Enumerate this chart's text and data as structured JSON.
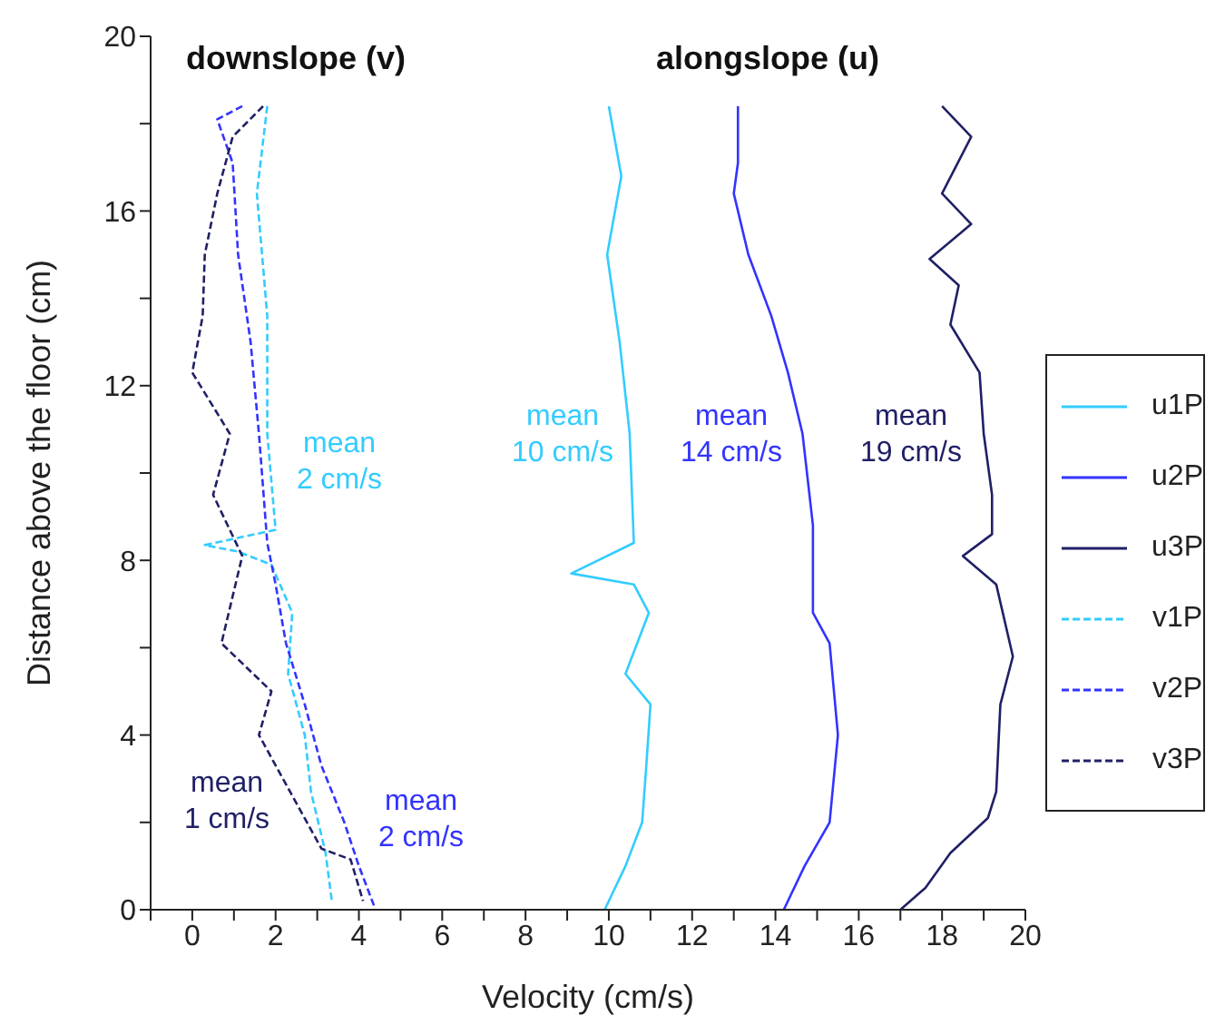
{
  "chart_data": {
    "type": "line",
    "xlabel": "Velocity (cm/s)",
    "ylabel": "Distance above the floor (cm)",
    "xlim": [
      -1,
      20
    ],
    "ylim": [
      0,
      20
    ],
    "xticks": [
      {
        "value": -1,
        "label": null
      },
      0,
      {
        "value": 1,
        "label": null
      },
      2,
      {
        "value": 3,
        "label": null
      },
      4,
      {
        "value": 5,
        "label": null
      },
      6,
      {
        "value": 7,
        "label": null
      },
      8,
      {
        "value": 9,
        "label": null
      },
      10,
      {
        "value": 11,
        "label": null
      },
      12,
      {
        "value": 13,
        "label": null
      },
      14,
      {
        "value": 15,
        "label": null
      },
      16,
      {
        "value": 17,
        "label": null
      },
      18,
      {
        "value": 19,
        "label": null
      },
      20
    ],
    "yticks": [
      0,
      {
        "value": 2,
        "label": null
      },
      4,
      {
        "value": 6,
        "label": null
      },
      8,
      {
        "value": 10,
        "label": null
      },
      12,
      {
        "value": 14,
        "label": null
      },
      16,
      {
        "value": 18,
        "label": null
      },
      20
    ],
    "legend": "right",
    "marker": "none",
    "series": [
      {
        "name": "u1P",
        "color": "#33ccff",
        "line_style": "solid",
        "x": [
          10.0,
          10.3,
          9.96,
          10.26,
          10.5,
          10.6,
          9.1,
          10.6,
          10.96,
          10.4,
          11.0,
          10.9,
          10.8,
          10.4,
          9.9
        ],
        "values": [
          18.4,
          16.8,
          15.0,
          13.0,
          10.9,
          8.4,
          7.7,
          7.45,
          6.8,
          5.4,
          4.7,
          3.3,
          2.0,
          1.0,
          0
        ]
      },
      {
        "name": "u2P",
        "color": "#3333ff",
        "line_style": "solid",
        "x": [
          13.1,
          13.1,
          13.0,
          13.35,
          13.9,
          14.3,
          14.65,
          14.9,
          14.9,
          15.3,
          15.5,
          15.3,
          14.7,
          14.2
        ],
        "values": [
          18.4,
          17.1,
          16.4,
          15.0,
          13.6,
          12.3,
          10.9,
          8.8,
          6.8,
          6.1,
          4.0,
          2.0,
          1.0,
          0
        ]
      },
      {
        "name": "u3P",
        "color": "#202066",
        "line_style": "solid",
        "x": [
          18.0,
          18.7,
          18.0,
          18.7,
          17.7,
          18.4,
          18.2,
          18.9,
          19.0,
          19.2,
          19.2,
          18.5,
          19.3,
          19.7,
          19.4,
          19.3,
          19.1,
          18.2,
          17.6,
          17.0
        ],
        "values": [
          18.4,
          17.7,
          16.4,
          15.7,
          14.9,
          14.3,
          13.4,
          12.3,
          10.9,
          9.5,
          8.6,
          8.1,
          7.45,
          5.8,
          4.7,
          2.7,
          2.1,
          1.3,
          0.5,
          0
        ]
      },
      {
        "name": "v1P",
        "color": "#33ccff",
        "line_style": "dashed",
        "x": [
          1.8,
          1.55,
          1.8,
          1.8,
          2.0,
          0.3,
          1.1,
          1.9,
          2.4,
          2.3,
          2.7,
          2.85,
          3.2,
          3.35
        ],
        "values": [
          18.4,
          16.4,
          13.6,
          10.9,
          8.7,
          8.35,
          8.2,
          7.9,
          6.8,
          5.4,
          4.0,
          2.7,
          1.3,
          0.2
        ]
      },
      {
        "name": "v2P",
        "color": "#3333ff",
        "line_style": "dashed",
        "x": [
          1.2,
          0.6,
          0.97,
          1.1,
          1.4,
          1.6,
          1.8,
          2.0,
          2.25,
          2.7,
          3.1,
          3.65,
          4.0,
          4.4
        ],
        "values": [
          18.4,
          18.1,
          17.1,
          15.0,
          13.0,
          10.9,
          8.4,
          7.45,
          6.1,
          4.7,
          3.3,
          2.0,
          1.0,
          0
        ]
      },
      {
        "name": "v3P",
        "color": "#202066",
        "line_style": "dashed",
        "x": [
          1.7,
          0.97,
          0.6,
          0.3,
          0.25,
          0.0,
          0.9,
          0.5,
          1.2,
          0.7,
          1.9,
          1.6,
          2.35,
          3.1,
          3.8,
          4.1
        ],
        "values": [
          18.4,
          17.7,
          16.4,
          15.0,
          13.6,
          12.3,
          10.9,
          9.5,
          8.1,
          6.1,
          5.0,
          4.0,
          2.7,
          1.4,
          1.15,
          0.2
        ]
      }
    ],
    "annotations": [
      "downslope (v)",
      "alongslope (u)",
      "mean 2 cm/s",
      "mean 2 cm/s",
      "mean 1 cm/s",
      "mean 10 cm/s",
      "mean 14 cm/s",
      "mean 19 cm/s"
    ]
  }
}
